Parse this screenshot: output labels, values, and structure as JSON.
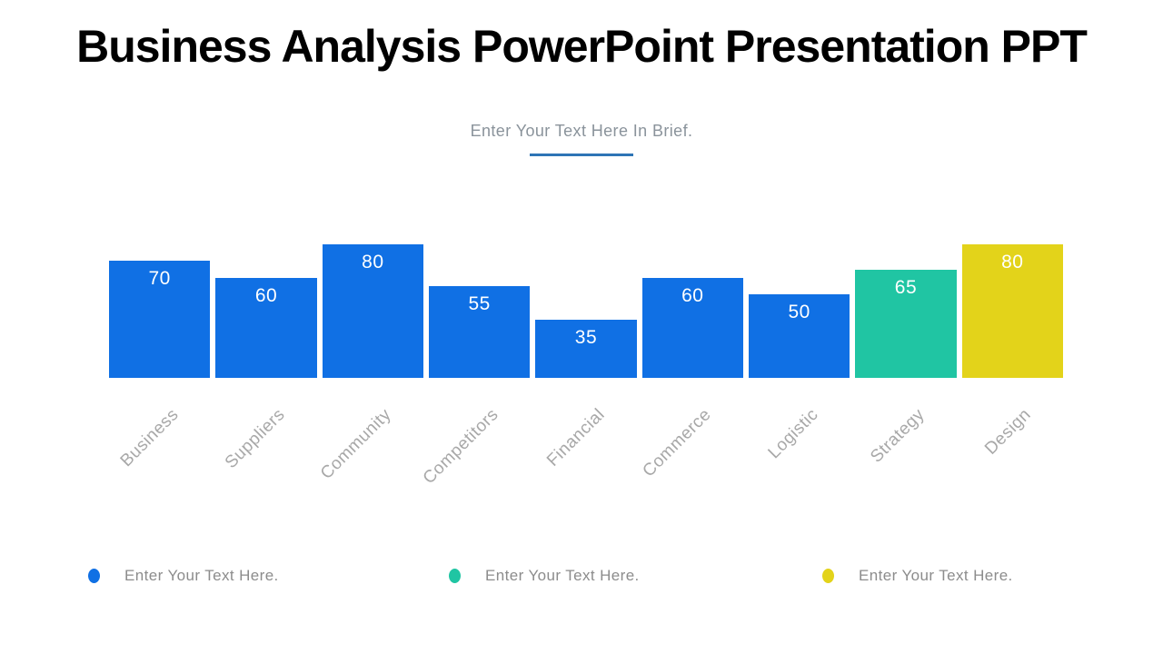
{
  "slide": {
    "title": "Business Analysis PowerPoint Presentation PPT",
    "subtitle": "Enter Your Text Here In Brief."
  },
  "chart_data": {
    "type": "bar",
    "title": "",
    "xlabel": "",
    "ylabel": "",
    "categories": [
      "Business",
      "Suppliers",
      "Community",
      "Competitors",
      "Financial",
      "Commerce",
      "Logistic",
      "Strategy",
      "Design"
    ],
    "values": [
      70,
      60,
      80,
      55,
      35,
      60,
      50,
      65,
      80
    ],
    "bar_colors": [
      "#1070E4",
      "#1070E4",
      "#1070E4",
      "#1070E4",
      "#1070E4",
      "#1070E4",
      "#1070E4",
      "#20C5A3",
      "#E3D31A"
    ],
    "ylim": [
      0,
      80
    ],
    "grid": false,
    "axes_visible": false,
    "value_labels": "inside-top",
    "category_label_rotation_deg": 45,
    "legend_position": "bottom"
  },
  "legend": {
    "items": [
      {
        "label": "Enter Your Text Here.",
        "color": "#1070E4"
      },
      {
        "label": "Enter Your Text Here.",
        "color": "#20C5A3"
      },
      {
        "label": "Enter Your Text Here.",
        "color": "#E3D31A"
      }
    ]
  },
  "colors": {
    "background": "#FFFFFF",
    "title_text": "#000000",
    "subtitle_text": "#8A939B",
    "subtitle_underline": "#2E75B6",
    "value_label_text": "#FFFFFF",
    "category_label_text": "#A8A8A8",
    "legend_text": "#8C8C8C"
  }
}
